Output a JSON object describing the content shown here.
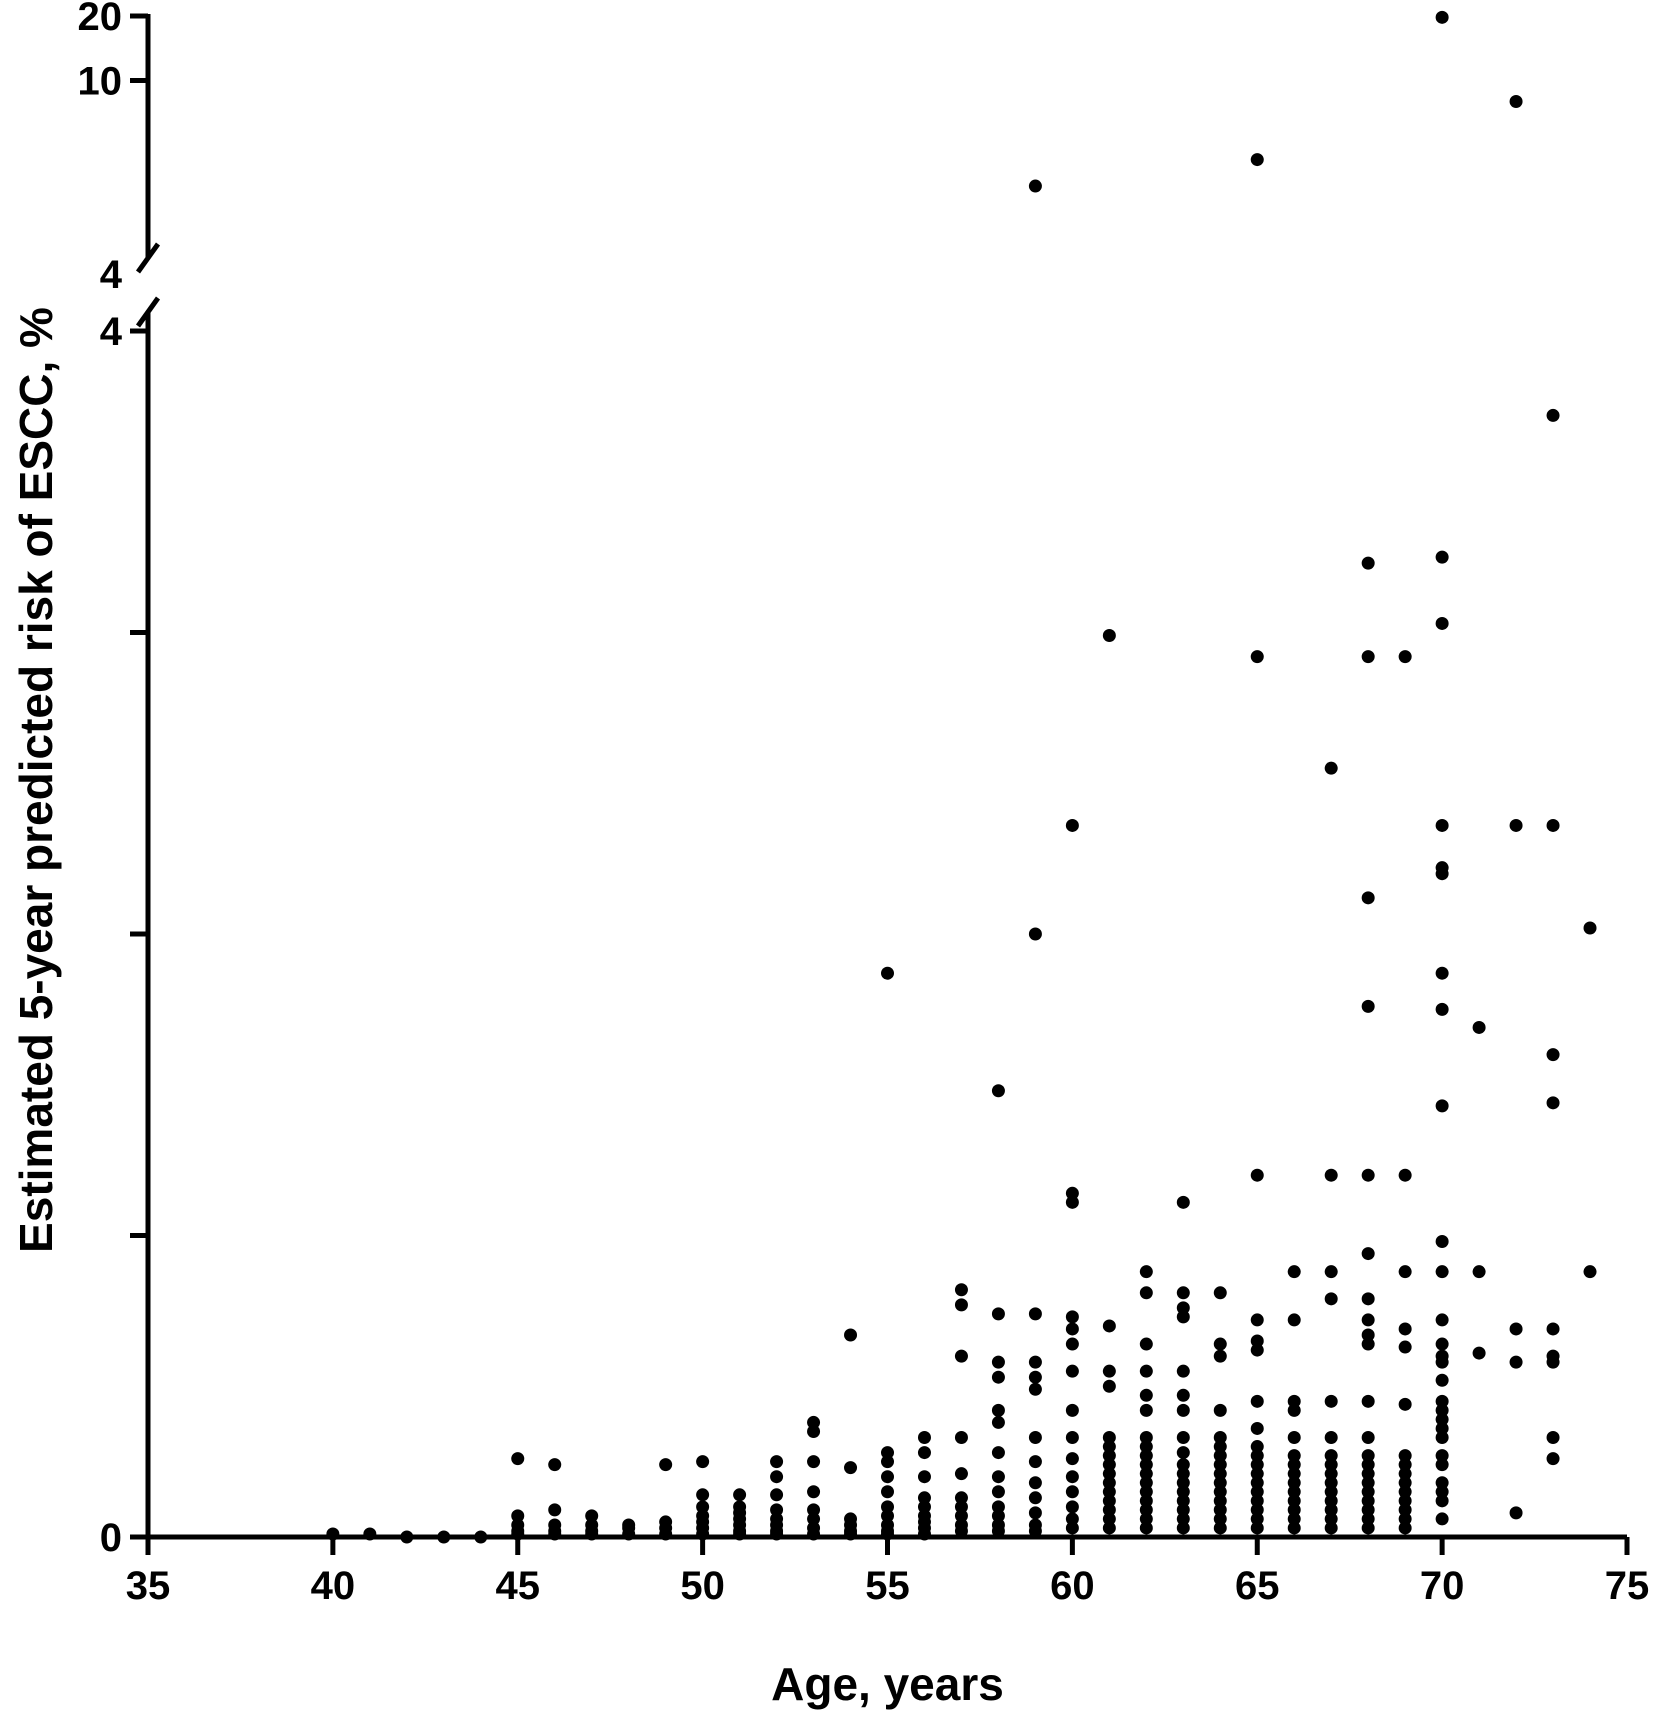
{
  "chart_data": {
    "type": "scatter",
    "xlabel": "Age, years",
    "ylabel": "Estimated 5-year predicted risk of ESCC,  %",
    "x_ticks": [
      "35",
      "40",
      "45",
      "50",
      "55",
      "60",
      "65",
      "70",
      "75"
    ],
    "xlim": [
      35,
      75
    ],
    "y_axis_break": true,
    "y_lower_segment": {
      "range": [
        0,
        4
      ],
      "tick_labels": [
        "0",
        "4"
      ],
      "minor_ticks": [
        1,
        2,
        3
      ]
    },
    "y_upper_segment": {
      "range": [
        4,
        20
      ],
      "tick_labels": [
        "4",
        "10",
        "20"
      ]
    },
    "grid": false,
    "legend": "none",
    "marker_color": "#000000",
    "points": [
      [
        40,
        0.01
      ],
      [
        41,
        0.01
      ],
      [
        42,
        0
      ],
      [
        43,
        0
      ],
      [
        44,
        0
      ],
      [
        45,
        0.26
      ],
      [
        45,
        0.07
      ],
      [
        45,
        0.04
      ],
      [
        45,
        0.02
      ],
      [
        45,
        0.01
      ],
      [
        46,
        0.24
      ],
      [
        46,
        0.09
      ],
      [
        46,
        0.04
      ],
      [
        46,
        0.02
      ],
      [
        46,
        0.01
      ],
      [
        47,
        0.07
      ],
      [
        47,
        0.04
      ],
      [
        47,
        0.02
      ],
      [
        47,
        0.01
      ],
      [
        48,
        0.04
      ],
      [
        48,
        0.03
      ],
      [
        48,
        0.01
      ],
      [
        49,
        0.24
      ],
      [
        49,
        0.05
      ],
      [
        49,
        0.03
      ],
      [
        49,
        0.01
      ],
      [
        50,
        0.25
      ],
      [
        50,
        0.14
      ],
      [
        50,
        0.1
      ],
      [
        50,
        0.07
      ],
      [
        50,
        0.05
      ],
      [
        50,
        0.03
      ],
      [
        50,
        0.01
      ],
      [
        51,
        0.14
      ],
      [
        51,
        0.1
      ],
      [
        51,
        0.08
      ],
      [
        51,
        0.06
      ],
      [
        51,
        0.04
      ],
      [
        51,
        0.02
      ],
      [
        51,
        0.01
      ],
      [
        52,
        0.25
      ],
      [
        52,
        0.2
      ],
      [
        52,
        0.14
      ],
      [
        52,
        0.09
      ],
      [
        52,
        0.06
      ],
      [
        52,
        0.04
      ],
      [
        52,
        0.02
      ],
      [
        52,
        0.01
      ],
      [
        53,
        0.38
      ],
      [
        53,
        0.35
      ],
      [
        53,
        0.25
      ],
      [
        53,
        0.15
      ],
      [
        53,
        0.09
      ],
      [
        53,
        0.06
      ],
      [
        53,
        0.03
      ],
      [
        53,
        0.01
      ],
      [
        54,
        0.67
      ],
      [
        54,
        0.23
      ],
      [
        54,
        0.06
      ],
      [
        54,
        0.04
      ],
      [
        54,
        0.02
      ],
      [
        54,
        0.01
      ],
      [
        55,
        1.87
      ],
      [
        55,
        0.28
      ],
      [
        55,
        0.25
      ],
      [
        55,
        0.2
      ],
      [
        55,
        0.15
      ],
      [
        55,
        0.1
      ],
      [
        55,
        0.07
      ],
      [
        55,
        0.04
      ],
      [
        55,
        0.02
      ],
      [
        55,
        0.01
      ],
      [
        56,
        0.33
      ],
      [
        56,
        0.28
      ],
      [
        56,
        0.2
      ],
      [
        56,
        0.13
      ],
      [
        56,
        0.1
      ],
      [
        56,
        0.07
      ],
      [
        56,
        0.05
      ],
      [
        56,
        0.03
      ],
      [
        56,
        0.01
      ],
      [
        57,
        0.82
      ],
      [
        57,
        0.77
      ],
      [
        57,
        0.6
      ],
      [
        57,
        0.33
      ],
      [
        57,
        0.21
      ],
      [
        57,
        0.13
      ],
      [
        57,
        0.1
      ],
      [
        57,
        0.07
      ],
      [
        57,
        0.04
      ],
      [
        57,
        0.02
      ],
      [
        58,
        1.48
      ],
      [
        58,
        0.74
      ],
      [
        58,
        0.58
      ],
      [
        58,
        0.53
      ],
      [
        58,
        0.42
      ],
      [
        58,
        0.38
      ],
      [
        58,
        0.28
      ],
      [
        58,
        0.2
      ],
      [
        58,
        0.15
      ],
      [
        58,
        0.1
      ],
      [
        58,
        0.07
      ],
      [
        58,
        0.04
      ],
      [
        58,
        0.02
      ],
      [
        59,
        5.5
      ],
      [
        59,
        2.0
      ],
      [
        59,
        0.74
      ],
      [
        59,
        0.58
      ],
      [
        59,
        0.53
      ],
      [
        59,
        0.49
      ],
      [
        59,
        0.33
      ],
      [
        59,
        0.25
      ],
      [
        59,
        0.18
      ],
      [
        59,
        0.13
      ],
      [
        59,
        0.08
      ],
      [
        59,
        0.04
      ],
      [
        59,
        0.02
      ],
      [
        60,
        2.36
      ],
      [
        60,
        1.14
      ],
      [
        60,
        1.11
      ],
      [
        60,
        0.73
      ],
      [
        60,
        0.69
      ],
      [
        60,
        0.64
      ],
      [
        60,
        0.55
      ],
      [
        60,
        0.42
      ],
      [
        60,
        0.33
      ],
      [
        60,
        0.26
      ],
      [
        60,
        0.2
      ],
      [
        60,
        0.15
      ],
      [
        60,
        0.1
      ],
      [
        60,
        0.06
      ],
      [
        60,
        0.03
      ],
      [
        61,
        2.99
      ],
      [
        61,
        0.7
      ],
      [
        61,
        0.55
      ],
      [
        61,
        0.5
      ],
      [
        61,
        0.33
      ],
      [
        61,
        0.3
      ],
      [
        61,
        0.27
      ],
      [
        61,
        0.24
      ],
      [
        61,
        0.21
      ],
      [
        61,
        0.18
      ],
      [
        61,
        0.15
      ],
      [
        61,
        0.12
      ],
      [
        61,
        0.09
      ],
      [
        61,
        0.06
      ],
      [
        61,
        0.03
      ],
      [
        62,
        0.88
      ],
      [
        62,
        0.81
      ],
      [
        62,
        0.64
      ],
      [
        62,
        0.55
      ],
      [
        62,
        0.47
      ],
      [
        62,
        0.42
      ],
      [
        62,
        0.33
      ],
      [
        62,
        0.3
      ],
      [
        62,
        0.27
      ],
      [
        62,
        0.24
      ],
      [
        62,
        0.21
      ],
      [
        62,
        0.18
      ],
      [
        62,
        0.15
      ],
      [
        62,
        0.12
      ],
      [
        62,
        0.09
      ],
      [
        62,
        0.06
      ],
      [
        62,
        0.03
      ],
      [
        63,
        1.11
      ],
      [
        63,
        0.81
      ],
      [
        63,
        0.76
      ],
      [
        63,
        0.73
      ],
      [
        63,
        0.55
      ],
      [
        63,
        0.47
      ],
      [
        63,
        0.42
      ],
      [
        63,
        0.33
      ],
      [
        63,
        0.28
      ],
      [
        63,
        0.24
      ],
      [
        63,
        0.21
      ],
      [
        63,
        0.18
      ],
      [
        63,
        0.15
      ],
      [
        63,
        0.12
      ],
      [
        63,
        0.09
      ],
      [
        63,
        0.06
      ],
      [
        63,
        0.03
      ],
      [
        64,
        0.81
      ],
      [
        64,
        0.64
      ],
      [
        64,
        0.6
      ],
      [
        64,
        0.42
      ],
      [
        64,
        0.33
      ],
      [
        64,
        0.3
      ],
      [
        64,
        0.27
      ],
      [
        64,
        0.24
      ],
      [
        64,
        0.21
      ],
      [
        64,
        0.18
      ],
      [
        64,
        0.15
      ],
      [
        64,
        0.12
      ],
      [
        64,
        0.09
      ],
      [
        64,
        0.06
      ],
      [
        64,
        0.03
      ],
      [
        65,
        6.2
      ],
      [
        65,
        2.92
      ],
      [
        65,
        1.2
      ],
      [
        65,
        0.72
      ],
      [
        65,
        0.65
      ],
      [
        65,
        0.62
      ],
      [
        65,
        0.45
      ],
      [
        65,
        0.36
      ],
      [
        65,
        0.3
      ],
      [
        65,
        0.27
      ],
      [
        65,
        0.24
      ],
      [
        65,
        0.21
      ],
      [
        65,
        0.18
      ],
      [
        65,
        0.15
      ],
      [
        65,
        0.12
      ],
      [
        65,
        0.09
      ],
      [
        65,
        0.06
      ],
      [
        65,
        0.03
      ],
      [
        66,
        0.88
      ],
      [
        66,
        0.72
      ],
      [
        66,
        0.45
      ],
      [
        66,
        0.42
      ],
      [
        66,
        0.33
      ],
      [
        66,
        0.27
      ],
      [
        66,
        0.24
      ],
      [
        66,
        0.21
      ],
      [
        66,
        0.18
      ],
      [
        66,
        0.15
      ],
      [
        66,
        0.12
      ],
      [
        66,
        0.09
      ],
      [
        66,
        0.06
      ],
      [
        66,
        0.03
      ],
      [
        67,
        2.55
      ],
      [
        67,
        1.2
      ],
      [
        67,
        0.88
      ],
      [
        67,
        0.79
      ],
      [
        67,
        0.45
      ],
      [
        67,
        0.33
      ],
      [
        67,
        0.27
      ],
      [
        67,
        0.24
      ],
      [
        67,
        0.21
      ],
      [
        67,
        0.18
      ],
      [
        67,
        0.15
      ],
      [
        67,
        0.12
      ],
      [
        67,
        0.09
      ],
      [
        67,
        0.06
      ],
      [
        67,
        0.03
      ],
      [
        68,
        3.23
      ],
      [
        68,
        2.92
      ],
      [
        68,
        2.12
      ],
      [
        68,
        1.76
      ],
      [
        68,
        1.2
      ],
      [
        68,
        0.94
      ],
      [
        68,
        0.79
      ],
      [
        68,
        0.72
      ],
      [
        68,
        0.67
      ],
      [
        68,
        0.64
      ],
      [
        68,
        0.45
      ],
      [
        68,
        0.33
      ],
      [
        68,
        0.27
      ],
      [
        68,
        0.24
      ],
      [
        68,
        0.21
      ],
      [
        68,
        0.18
      ],
      [
        68,
        0.15
      ],
      [
        68,
        0.12
      ],
      [
        68,
        0.09
      ],
      [
        68,
        0.06
      ],
      [
        68,
        0.03
      ],
      [
        69,
        2.92
      ],
      [
        69,
        1.2
      ],
      [
        69,
        0.88
      ],
      [
        69,
        0.69
      ],
      [
        69,
        0.63
      ],
      [
        69,
        0.44
      ],
      [
        69,
        0.27
      ],
      [
        69,
        0.24
      ],
      [
        69,
        0.21
      ],
      [
        69,
        0.18
      ],
      [
        69,
        0.15
      ],
      [
        69,
        0.12
      ],
      [
        69,
        0.09
      ],
      [
        69,
        0.06
      ],
      [
        69,
        0.03
      ],
      [
        70,
        19.6
      ],
      [
        70,
        3.25
      ],
      [
        70,
        3.03
      ],
      [
        70,
        2.36
      ],
      [
        70,
        2.22
      ],
      [
        70,
        2.2
      ],
      [
        70,
        1.87
      ],
      [
        70,
        1.75
      ],
      [
        70,
        1.43
      ],
      [
        70,
        0.98
      ],
      [
        70,
        0.88
      ],
      [
        70,
        0.72
      ],
      [
        70,
        0.64
      ],
      [
        70,
        0.6
      ],
      [
        70,
        0.58
      ],
      [
        70,
        0.52
      ],
      [
        70,
        0.45
      ],
      [
        70,
        0.42
      ],
      [
        70,
        0.39
      ],
      [
        70,
        0.36
      ],
      [
        70,
        0.33
      ],
      [
        70,
        0.27
      ],
      [
        70,
        0.24
      ],
      [
        70,
        0.18
      ],
      [
        70,
        0.15
      ],
      [
        70,
        0.12
      ],
      [
        70,
        0.06
      ],
      [
        71,
        1.69
      ],
      [
        71,
        0.88
      ],
      [
        71,
        0.61
      ],
      [
        72,
        8.6
      ],
      [
        72,
        2.36
      ],
      [
        72,
        0.69
      ],
      [
        72,
        0.58
      ],
      [
        72,
        0.08
      ],
      [
        73,
        3.72
      ],
      [
        73,
        2.36
      ],
      [
        73,
        1.6
      ],
      [
        73,
        1.44
      ],
      [
        73,
        0.69
      ],
      [
        73,
        0.6
      ],
      [
        73,
        0.58
      ],
      [
        73,
        0.33
      ],
      [
        73,
        0.26
      ],
      [
        74,
        2.02
      ],
      [
        74,
        0.88
      ]
    ]
  }
}
